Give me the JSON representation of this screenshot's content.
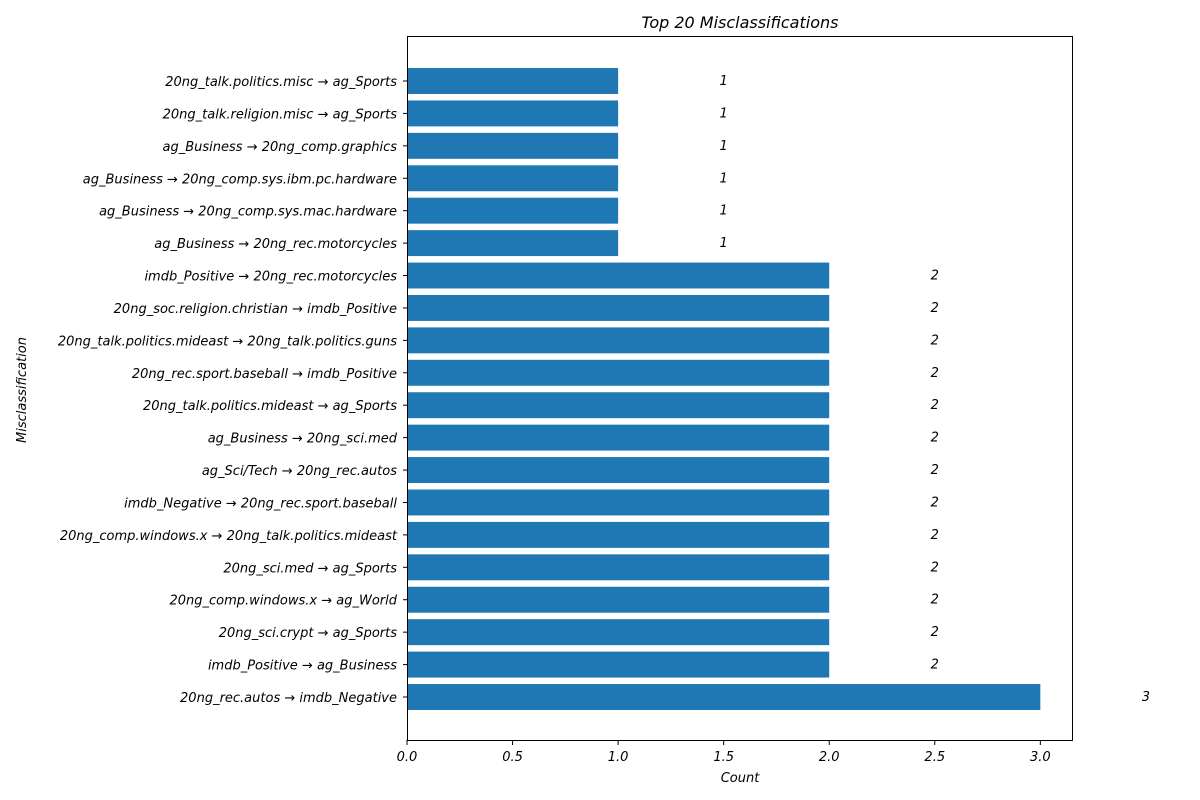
{
  "chart_data": {
    "type": "bar",
    "orientation": "horizontal",
    "title": "Top 20 Misclassifications",
    "xlabel": "Count",
    "ylabel": "Misclassification",
    "xlim": [
      0,
      3.15
    ],
    "xticks": [
      "0.0",
      "0.5",
      "1.0",
      "1.5",
      "2.0",
      "2.5",
      "3.0"
    ],
    "xtick_values": [
      0,
      0.5,
      1,
      1.5,
      2,
      2.5,
      3
    ],
    "grid": false,
    "bar_color": "#1f77b4",
    "categories": [
      "20ng_talk.politics.misc → ag_Sports",
      "20ng_talk.religion.misc → ag_Sports",
      "ag_Business → 20ng_comp.graphics",
      "ag_Business → 20ng_comp.sys.ibm.pc.hardware",
      "ag_Business → 20ng_comp.sys.mac.hardware",
      "ag_Business → 20ng_rec.motorcycles",
      "imdb_Positive → 20ng_rec.motorcycles",
      "20ng_soc.religion.christian → imdb_Positive",
      "20ng_talk.politics.mideast → 20ng_talk.politics.guns",
      "20ng_rec.sport.baseball → imdb_Positive",
      "20ng_talk.politics.mideast → ag_Sports",
      "ag_Business → 20ng_sci.med",
      "ag_Sci/Tech → 20ng_rec.autos",
      "imdb_Negative → 20ng_rec.sport.baseball",
      "20ng_comp.windows.x → 20ng_talk.politics.mideast",
      "20ng_sci.med → ag_Sports",
      "20ng_comp.windows.x → ag_World",
      "20ng_sci.crypt → ag_Sports",
      "imdb_Positive → ag_Business",
      "20ng_rec.autos → imdb_Negative"
    ],
    "values": [
      1,
      1,
      1,
      1,
      1,
      1,
      2,
      2,
      2,
      2,
      2,
      2,
      2,
      2,
      2,
      2,
      2,
      2,
      2,
      3
    ],
    "data_labels": [
      "1",
      "1",
      "1",
      "1",
      "1",
      "1",
      "2",
      "2",
      "2",
      "2",
      "2",
      "2",
      "2",
      "2",
      "2",
      "2",
      "2",
      "2",
      "2",
      "3"
    ]
  }
}
